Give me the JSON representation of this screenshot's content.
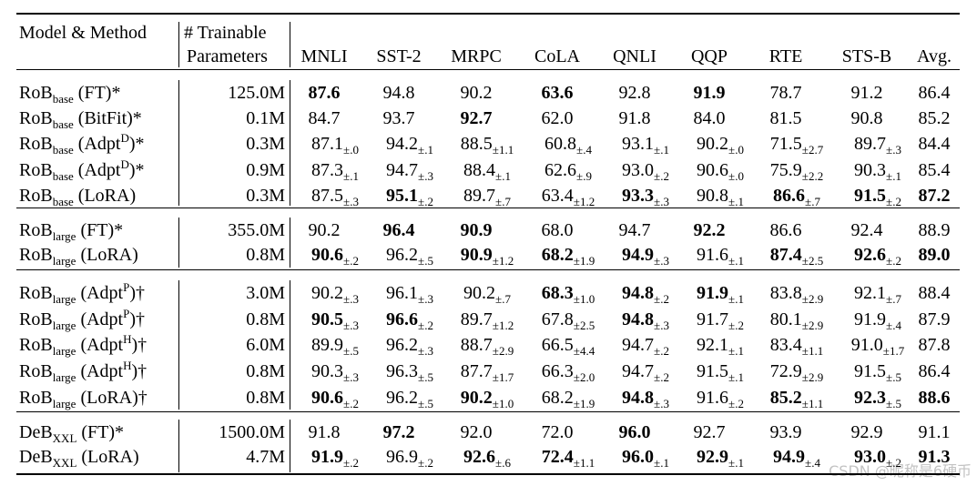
{
  "header": {
    "model": "Model & Method",
    "params": [
      "# Trainable",
      "Parameters"
    ],
    "columns": [
      "MNLI",
      "SST-2",
      "MRPC",
      "CoLA",
      "QNLI",
      "QQP",
      "RTE",
      "STS-B",
      "Avg."
    ]
  },
  "groups": [
    {
      "rows": [
        {
          "model": {
            "name": "RoB",
            "sub": "base",
            "method": "(FT)*"
          },
          "params": "125.0M",
          "values": [
            {
              "v": "87.6",
              "b": true
            },
            {
              "v": "94.8"
            },
            {
              "v": "90.2"
            },
            {
              "v": "63.6",
              "b": true
            },
            {
              "v": "92.8"
            },
            {
              "v": "91.9",
              "b": true
            },
            {
              "v": "78.7"
            },
            {
              "v": "91.2"
            },
            {
              "v": "86.4"
            }
          ]
        },
        {
          "model": {
            "name": "RoB",
            "sub": "base",
            "method": "(BitFit)*"
          },
          "params": "0.1M",
          "values": [
            {
              "v": "84.7"
            },
            {
              "v": "93.7"
            },
            {
              "v": "92.7",
              "b": true
            },
            {
              "v": "62.0"
            },
            {
              "v": "91.8"
            },
            {
              "v": "84.0"
            },
            {
              "v": "81.5"
            },
            {
              "v": "90.8"
            },
            {
              "v": "85.2"
            }
          ]
        },
        {
          "model": {
            "name": "RoB",
            "sub": "base",
            "method": "(Adpt",
            "sup": "D",
            "close": ")*"
          },
          "params": "0.3M",
          "values": [
            {
              "v": "87.1",
              "pm": "±.0"
            },
            {
              "v": "94.2",
              "pm": "±.1"
            },
            {
              "v": "88.5",
              "pm": "±1.1"
            },
            {
              "v": "60.8",
              "pm": "±.4"
            },
            {
              "v": "93.1",
              "pm": "±.1"
            },
            {
              "v": "90.2",
              "pm": "±.0"
            },
            {
              "v": "71.5",
              "pm": "±2.7"
            },
            {
              "v": "89.7",
              "pm": "±.3"
            },
            {
              "v": "84.4"
            }
          ]
        },
        {
          "model": {
            "name": "RoB",
            "sub": "base",
            "method": "(Adpt",
            "sup": "D",
            "close": ")*"
          },
          "params": "0.9M",
          "values": [
            {
              "v": "87.3",
              "pm": "±.1"
            },
            {
              "v": "94.7",
              "pm": "±.3"
            },
            {
              "v": "88.4",
              "pm": "±.1"
            },
            {
              "v": "62.6",
              "pm": "±.9"
            },
            {
              "v": "93.0",
              "pm": "±.2"
            },
            {
              "v": "90.6",
              "pm": "±.0"
            },
            {
              "v": "75.9",
              "pm": "±2.2"
            },
            {
              "v": "90.3",
              "pm": "±.1"
            },
            {
              "v": "85.4"
            }
          ]
        },
        {
          "model": {
            "name": "RoB",
            "sub": "base",
            "method": "(LoRA)"
          },
          "params": "0.3M",
          "values": [
            {
              "v": "87.5",
              "pm": "±.3"
            },
            {
              "v": "95.1",
              "pm": "±.2",
              "b": true
            },
            {
              "v": "89.7",
              "pm": "±.7"
            },
            {
              "v": "63.4",
              "pm": "±1.2"
            },
            {
              "v": "93.3",
              "pm": "±.3",
              "b": true
            },
            {
              "v": "90.8",
              "pm": "±.1"
            },
            {
              "v": "86.6",
              "pm": "±.7",
              "b": true
            },
            {
              "v": "91.5",
              "pm": "±.2",
              "b": true
            },
            {
              "v": "87.2",
              "b": true
            }
          ]
        }
      ]
    },
    {
      "rows": [
        {
          "model": {
            "name": "RoB",
            "sub": "large",
            "method": "(FT)*"
          },
          "params": "355.0M",
          "values": [
            {
              "v": "90.2"
            },
            {
              "v": "96.4",
              "b": true
            },
            {
              "v": "90.9",
              "b": true
            },
            {
              "v": "68.0"
            },
            {
              "v": "94.7"
            },
            {
              "v": "92.2",
              "b": true
            },
            {
              "v": "86.6"
            },
            {
              "v": "92.4"
            },
            {
              "v": "88.9"
            }
          ]
        },
        {
          "model": {
            "name": "RoB",
            "sub": "large",
            "method": "(LoRA)"
          },
          "params": "0.8M",
          "values": [
            {
              "v": "90.6",
              "pm": "±.2",
              "b": true
            },
            {
              "v": "96.2",
              "pm": "±.5"
            },
            {
              "v": "90.9",
              "pm": "±1.2",
              "b": true
            },
            {
              "v": "68.2",
              "pm": "±1.9",
              "b": true
            },
            {
              "v": "94.9",
              "pm": "±.3",
              "b": true
            },
            {
              "v": "91.6",
              "pm": "±.1"
            },
            {
              "v": "87.4",
              "pm": "±2.5",
              "b": true
            },
            {
              "v": "92.6",
              "pm": "±.2",
              "b": true
            },
            {
              "v": "89.0",
              "b": true
            }
          ]
        }
      ]
    },
    {
      "rows": [
        {
          "model": {
            "name": "RoB",
            "sub": "large",
            "method": "(Adpt",
            "sup": "P",
            "close": ")†"
          },
          "params": "3.0M",
          "values": [
            {
              "v": "90.2",
              "pm": "±.3"
            },
            {
              "v": "96.1",
              "pm": "±.3"
            },
            {
              "v": "90.2",
              "pm": "±.7"
            },
            {
              "v": "68.3",
              "pm": "±1.0",
              "b": true
            },
            {
              "v": "94.8",
              "pm": "±.2",
              "b": true
            },
            {
              "v": "91.9",
              "pm": "±.1",
              "b": true
            },
            {
              "v": "83.8",
              "pm": "±2.9"
            },
            {
              "v": "92.1",
              "pm": "±.7"
            },
            {
              "v": "88.4"
            }
          ]
        },
        {
          "model": {
            "name": "RoB",
            "sub": "large",
            "method": "(Adpt",
            "sup": "P",
            "close": ")†"
          },
          "params": "0.8M",
          "values": [
            {
              "v": "90.5",
              "pm": "±.3",
              "b": true
            },
            {
              "v": "96.6",
              "pm": "±.2",
              "b": true
            },
            {
              "v": "89.7",
              "pm": "±1.2"
            },
            {
              "v": "67.8",
              "pm": "±2.5"
            },
            {
              "v": "94.8",
              "pm": "±.3",
              "b": true
            },
            {
              "v": "91.7",
              "pm": "±.2"
            },
            {
              "v": "80.1",
              "pm": "±2.9"
            },
            {
              "v": "91.9",
              "pm": "±.4"
            },
            {
              "v": "87.9"
            }
          ]
        },
        {
          "model": {
            "name": "RoB",
            "sub": "large",
            "method": "(Adpt",
            "sup": "H",
            "close": ")†"
          },
          "params": "6.0M",
          "values": [
            {
              "v": "89.9",
              "pm": "±.5"
            },
            {
              "v": "96.2",
              "pm": "±.3"
            },
            {
              "v": "88.7",
              "pm": "±2.9"
            },
            {
              "v": "66.5",
              "pm": "±4.4"
            },
            {
              "v": "94.7",
              "pm": "±.2"
            },
            {
              "v": "92.1",
              "pm": "±.1"
            },
            {
              "v": "83.4",
              "pm": "±1.1"
            },
            {
              "v": "91.0",
              "pm": "±1.7"
            },
            {
              "v": "87.8"
            }
          ]
        },
        {
          "model": {
            "name": "RoB",
            "sub": "large",
            "method": "(Adpt",
            "sup": "H",
            "close": ")†"
          },
          "params": "0.8M",
          "values": [
            {
              "v": "90.3",
              "pm": "±.3"
            },
            {
              "v": "96.3",
              "pm": "±.5"
            },
            {
              "v": "87.7",
              "pm": "±1.7"
            },
            {
              "v": "66.3",
              "pm": "±2.0"
            },
            {
              "v": "94.7",
              "pm": "±.2"
            },
            {
              "v": "91.5",
              "pm": "±.1"
            },
            {
              "v": "72.9",
              "pm": "±2.9"
            },
            {
              "v": "91.5",
              "pm": "±.5"
            },
            {
              "v": "86.4"
            }
          ]
        },
        {
          "model": {
            "name": "RoB",
            "sub": "large",
            "method": "(LoRA)†"
          },
          "params": "0.8M",
          "values": [
            {
              "v": "90.6",
              "pm": "±.2",
              "b": true
            },
            {
              "v": "96.2",
              "pm": "±.5"
            },
            {
              "v": "90.2",
              "pm": "±1.0",
              "b": true
            },
            {
              "v": "68.2",
              "pm": "±1.9"
            },
            {
              "v": "94.8",
              "pm": "±.3",
              "b": true
            },
            {
              "v": "91.6",
              "pm": "±.2"
            },
            {
              "v": "85.2",
              "pm": "±1.1",
              "b": true
            },
            {
              "v": "92.3",
              "pm": "±.5",
              "b": true
            },
            {
              "v": "88.6",
              "b": true
            }
          ]
        }
      ]
    },
    {
      "rows": [
        {
          "model": {
            "name": "DeB",
            "sub": "XXL",
            "method": "(FT)*"
          },
          "params": "1500.0M",
          "values": [
            {
              "v": "91.8"
            },
            {
              "v": "97.2",
              "b": true
            },
            {
              "v": "92.0"
            },
            {
              "v": "72.0"
            },
            {
              "v": "96.0",
              "b": true
            },
            {
              "v": "92.7"
            },
            {
              "v": "93.9"
            },
            {
              "v": "92.9"
            },
            {
              "v": "91.1"
            }
          ]
        },
        {
          "model": {
            "name": "DeB",
            "sub": "XXL",
            "method": "(LoRA)"
          },
          "params": "4.7M",
          "values": [
            {
              "v": "91.9",
              "pm": "±.2",
              "b": true
            },
            {
              "v": "96.9",
              "pm": "±.2"
            },
            {
              "v": "92.6",
              "pm": "±.6",
              "b": true
            },
            {
              "v": "72.4",
              "pm": "±1.1",
              "b": true
            },
            {
              "v": "96.0",
              "pm": "±.1",
              "b": true
            },
            {
              "v": "92.9",
              "pm": "±.1",
              "b": true
            },
            {
              "v": "94.9",
              "pm": "±.4",
              "b": true
            },
            {
              "v": "93.0",
              "pm": "±.2",
              "b": true
            },
            {
              "v": "91.3",
              "b": true
            }
          ]
        }
      ]
    }
  ],
  "watermark": "CSDN @昵称是6硬币"
}
